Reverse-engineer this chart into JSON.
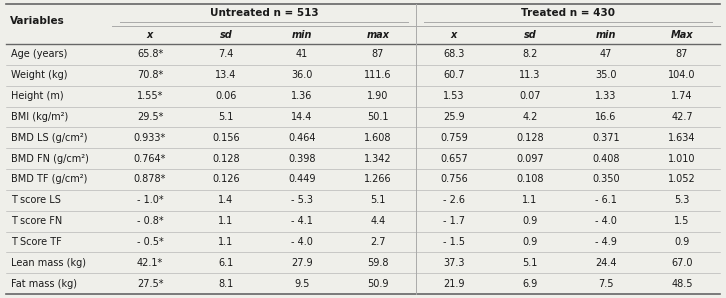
{
  "group_headers": [
    "Untreated n = 513",
    "Treated n = 430"
  ],
  "col_headers": [
    "x",
    "sd",
    "min",
    "max",
    "x",
    "sd",
    "min",
    "Max"
  ],
  "row_labels": [
    "Age (years)",
    "Weight (kg)",
    "Height (m)",
    "BMI (kg/m²)",
    "BMD LS (g/cm²)",
    "BMD FN (g/cm²)",
    "BMD TF (g/cm²)",
    "T score LS",
    "T score FN",
    "T Score TF",
    "Lean mass (kg)",
    "Fat mass (kg)"
  ],
  "data": [
    [
      "65.8*",
      "7.4",
      "41",
      "87",
      "68.3",
      "8.2",
      "47",
      "87"
    ],
    [
      "70.8*",
      "13.4",
      "36.0",
      "111.6",
      "60.7",
      "11.3",
      "35.0",
      "104.0"
    ],
    [
      "1.55*",
      "0.06",
      "1.36",
      "1.90",
      "1.53",
      "0.07",
      "1.33",
      "1.74"
    ],
    [
      "29.5*",
      "5.1",
      "14.4",
      "50.1",
      "25.9",
      "4.2",
      "16.6",
      "42.7"
    ],
    [
      "0.933*",
      "0.156",
      "0.464",
      "1.608",
      "0.759",
      "0.128",
      "0.371",
      "1.634"
    ],
    [
      "0.764*",
      "0.128",
      "0.398",
      "1.342",
      "0.657",
      "0.097",
      "0.408",
      "1.010"
    ],
    [
      "0.878*",
      "0.126",
      "0.449",
      "1.266",
      "0.756",
      "0.108",
      "0.350",
      "1.052"
    ],
    [
      "- 1.0*",
      "1.4",
      "- 5.3",
      "5.1",
      "- 2.6",
      "1.1",
      "- 6.1",
      "5.3"
    ],
    [
      "- 0.8*",
      "1.1",
      "- 4.1",
      "4.4",
      "- 1.7",
      "0.9",
      "- 4.0",
      "1.5"
    ],
    [
      "- 0.5*",
      "1.1",
      "- 4.0",
      "2.7",
      "- 1.5",
      "0.9",
      "- 4.9",
      "0.9"
    ],
    [
      "42.1*",
      "6.1",
      "27.9",
      "59.8",
      "37.3",
      "5.1",
      "24.4",
      "67.0"
    ],
    [
      "27.5*",
      "8.1",
      "9.5",
      "50.9",
      "21.9",
      "6.9",
      "7.5",
      "48.5"
    ]
  ],
  "bg_color": "#efefea",
  "line_color": "#aaaaaa",
  "strong_line_color": "#666666",
  "text_color": "#1a1a1a",
  "font_size": 7.0,
  "header_font_size": 7.5
}
